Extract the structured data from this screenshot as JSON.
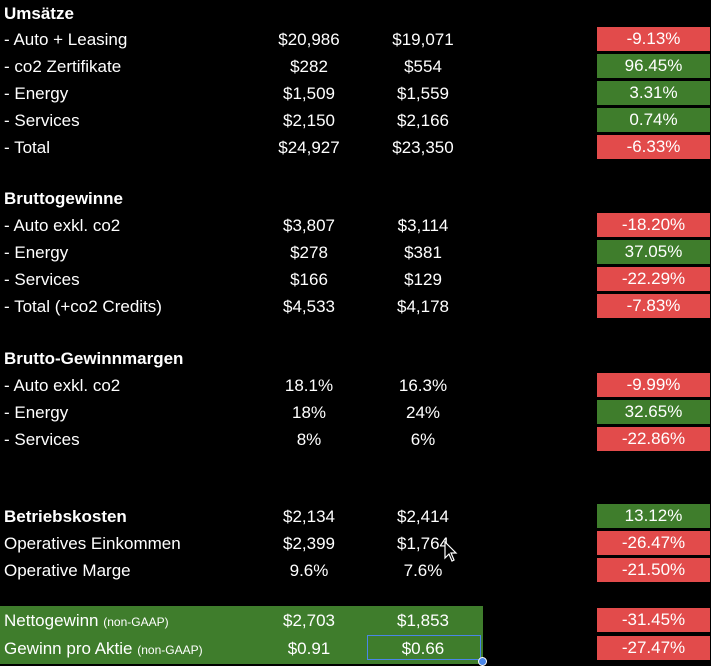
{
  "sections": {
    "umsaetze": {
      "title": "Umsätze",
      "rows": [
        {
          "label": "- Auto + Leasing",
          "v1": "$20,986",
          "v2": "$19,071",
          "change": "-9.13%"
        },
        {
          "label": "- co2 Zertifikate",
          "v1": "$282",
          "v2": "$554",
          "change": "96.45%"
        },
        {
          "label": "- Energy",
          "v1": "$1,509",
          "v2": "$1,559",
          "change": "3.31%"
        },
        {
          "label": "- Services",
          "v1": "$2,150",
          "v2": "$2,166",
          "change": "0.74%"
        },
        {
          "label": "- Total",
          "v1": "$24,927",
          "v2": "$23,350",
          "change": "-6.33%"
        }
      ]
    },
    "bruttogewinne": {
      "title": "Bruttogewinne",
      "rows": [
        {
          "label": "- Auto exkl. co2",
          "v1": "$3,807",
          "v2": "$3,114",
          "change": "-18.20%"
        },
        {
          "label": "- Energy",
          "v1": "$278",
          "v2": "$381",
          "change": "37.05%"
        },
        {
          "label": "- Services",
          "v1": "$166",
          "v2": "$129",
          "change": "-22.29%"
        },
        {
          "label": "- Total (+co2 Credits)",
          "v1": "$4,533",
          "v2": "$4,178",
          "change": "-7.83%"
        }
      ]
    },
    "margen": {
      "title": "Brutto-Gewinnmargen",
      "rows": [
        {
          "label": "- Auto exkl. co2",
          "v1": "18.1%",
          "v2": "16.3%",
          "change": "-9.99%"
        },
        {
          "label": "- Energy",
          "v1": "18%",
          "v2": "24%",
          "change": "32.65%"
        },
        {
          "label": "- Services",
          "v1": "8%",
          "v2": "6%",
          "change": "-22.86%"
        }
      ]
    },
    "betrieb": {
      "rows": [
        {
          "label": "Betriebskosten",
          "v1": "$2,134",
          "v2": "$2,414",
          "change": "13.12%"
        },
        {
          "label": "Operatives Einkommen",
          "v1": "$2,399",
          "v2": "$1,764",
          "change": "-26.47%"
        },
        {
          "label": "Operative Marge",
          "v1": "9.6%",
          "v2": "7.6%",
          "change": "-21.50%"
        }
      ]
    },
    "netto": {
      "rows": [
        {
          "label": "Nettogewinn",
          "note": "(non-GAAP)",
          "v1": "$2,703",
          "v2": "$1,853",
          "change": "-31.45%"
        },
        {
          "label": "Gewinn pro Aktie",
          "note": "(non-GAAP)",
          "v1": "$0.91",
          "v2": "$0.66",
          "change": "-27.47%"
        }
      ]
    }
  },
  "colors": {
    "negative": "#e24b4b",
    "positive": "#3f7d2c",
    "selection": "#4a86e8"
  }
}
